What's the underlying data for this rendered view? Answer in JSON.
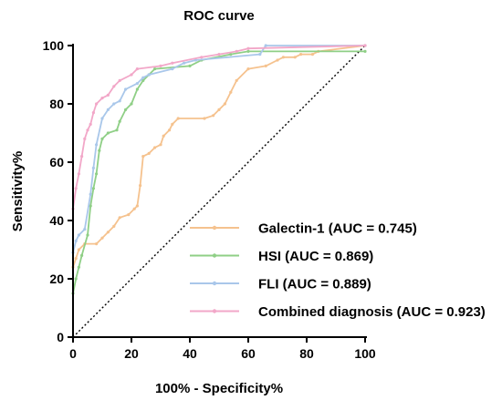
{
  "chart_data": {
    "type": "line",
    "title": "ROC curve",
    "xlabel": "100% - Specificity%",
    "ylabel": "Sensitivity%",
    "xlim": [
      0,
      100
    ],
    "ylim": [
      0,
      100
    ],
    "xticks": [
      0,
      20,
      40,
      60,
      80,
      100
    ],
    "yticks": [
      0,
      20,
      40,
      60,
      80,
      100
    ],
    "grid": false,
    "legend_position": "bottom-right",
    "reference_line": {
      "style": "dotted",
      "color": "#000000",
      "points": [
        [
          0,
          0
        ],
        [
          100,
          100
        ]
      ]
    },
    "series": [
      {
        "name": "Galectin-1 (AUC = 0.745)",
        "color": "#F5C28E",
        "points": [
          [
            0,
            0
          ],
          [
            0,
            24
          ],
          [
            1,
            27
          ],
          [
            2,
            30
          ],
          [
            4,
            32
          ],
          [
            8,
            32
          ],
          [
            10,
            34
          ],
          [
            12,
            36
          ],
          [
            14,
            38
          ],
          [
            16,
            41
          ],
          [
            19,
            42
          ],
          [
            21,
            44
          ],
          [
            22,
            45
          ],
          [
            23,
            52
          ],
          [
            24,
            62
          ],
          [
            26,
            63
          ],
          [
            28,
            65
          ],
          [
            30,
            66
          ],
          [
            31,
            69
          ],
          [
            33,
            71
          ],
          [
            34,
            73
          ],
          [
            36,
            75
          ],
          [
            45,
            75
          ],
          [
            48,
            76
          ],
          [
            50,
            78
          ],
          [
            52,
            80
          ],
          [
            54,
            84
          ],
          [
            56,
            88
          ],
          [
            60,
            92
          ],
          [
            66,
            93
          ],
          [
            70,
            95
          ],
          [
            72,
            96
          ],
          [
            76,
            96
          ],
          [
            78,
            97
          ],
          [
            82,
            97
          ],
          [
            84,
            98
          ],
          [
            100,
            100
          ]
        ]
      },
      {
        "name": "HSI (AUC = 0.869)",
        "color": "#8FCF86",
        "points": [
          [
            0,
            0
          ],
          [
            0,
            15
          ],
          [
            1,
            20
          ],
          [
            2,
            24
          ],
          [
            3,
            28
          ],
          [
            5,
            35
          ],
          [
            6,
            45
          ],
          [
            7,
            51
          ],
          [
            8,
            56
          ],
          [
            9,
            64
          ],
          [
            10,
            68
          ],
          [
            12,
            70
          ],
          [
            15,
            71
          ],
          [
            16,
            74
          ],
          [
            18,
            78
          ],
          [
            20,
            80
          ],
          [
            22,
            85
          ],
          [
            24,
            88
          ],
          [
            26,
            90
          ],
          [
            28,
            92
          ],
          [
            40,
            93
          ],
          [
            44,
            95
          ],
          [
            54,
            97
          ],
          [
            60,
            98
          ],
          [
            100,
            98
          ]
        ]
      },
      {
        "name": "FLI (AUC = 0.889)",
        "color": "#A9C7EA",
        "points": [
          [
            0,
            0
          ],
          [
            0,
            29
          ],
          [
            1,
            33
          ],
          [
            2,
            35
          ],
          [
            4,
            37
          ],
          [
            6,
            49
          ],
          [
            7,
            58
          ],
          [
            8,
            66
          ],
          [
            10,
            75
          ],
          [
            12,
            78
          ],
          [
            14,
            80
          ],
          [
            16,
            81
          ],
          [
            18,
            85
          ],
          [
            22,
            87
          ],
          [
            24,
            89
          ],
          [
            26,
            90
          ],
          [
            34,
            92
          ],
          [
            38,
            94
          ],
          [
            42,
            95
          ],
          [
            64,
            97
          ],
          [
            66,
            100
          ],
          [
            100,
            100
          ]
        ]
      },
      {
        "name": "Combined diagnosis (AUC = 0.923)",
        "color": "#F2A7C8",
        "points": [
          [
            0,
            0
          ],
          [
            0,
            44
          ],
          [
            1,
            51
          ],
          [
            2,
            56
          ],
          [
            3,
            62
          ],
          [
            4,
            68
          ],
          [
            5,
            71
          ],
          [
            6,
            73
          ],
          [
            7,
            77
          ],
          [
            8,
            80
          ],
          [
            10,
            82
          ],
          [
            12,
            83
          ],
          [
            14,
            86
          ],
          [
            16,
            88
          ],
          [
            20,
            90
          ],
          [
            22,
            92
          ],
          [
            30,
            93
          ],
          [
            34,
            94
          ],
          [
            44,
            96
          ],
          [
            50,
            97
          ],
          [
            56,
            98
          ],
          [
            60,
            99
          ],
          [
            100,
            100
          ]
        ]
      }
    ]
  }
}
